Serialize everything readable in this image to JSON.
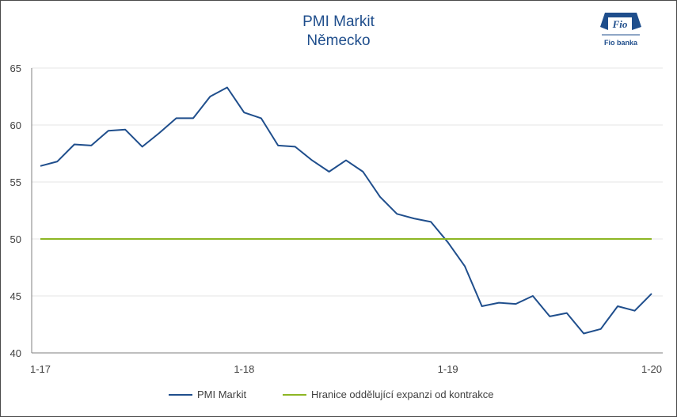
{
  "header": {
    "title_line1": "PMI Markit",
    "title_line2": "Německo",
    "logo_mark": "Fio",
    "logo_text": "Fio banka"
  },
  "colors": {
    "pmi_line": "#1f4e8c",
    "threshold_line": "#8db624",
    "grid": "#e6e6e6",
    "axis": "#7f7f7f",
    "title": "#1f4e8c",
    "logo": "#1f4e8c"
  },
  "chart_data": {
    "type": "line",
    "title": "PMI Markit",
    "subtitle": "Německo",
    "xlabel": "",
    "ylabel": "",
    "ylim": [
      40,
      65
    ],
    "yticks": [
      40,
      45,
      50,
      55,
      60,
      65
    ],
    "xticks": [
      "1-17",
      "1-18",
      "1-19",
      "1-20"
    ],
    "x": [
      "1-17",
      "2-17",
      "3-17",
      "4-17",
      "5-17",
      "6-17",
      "7-17",
      "8-17",
      "9-17",
      "10-17",
      "11-17",
      "12-17",
      "1-18",
      "2-18",
      "3-18",
      "4-18",
      "5-18",
      "6-18",
      "7-18",
      "8-18",
      "9-18",
      "10-18",
      "11-18",
      "12-18",
      "1-19",
      "2-19",
      "3-19",
      "4-19",
      "5-19",
      "6-19",
      "7-19",
      "8-19",
      "9-19",
      "10-19",
      "11-19",
      "12-19",
      "1-20"
    ],
    "series": [
      {
        "name": "PMI Markit",
        "values": [
          56.4,
          56.8,
          58.3,
          58.2,
          59.5,
          59.6,
          58.1,
          59.3,
          60.6,
          60.6,
          62.5,
          63.3,
          61.1,
          60.6,
          58.2,
          58.1,
          56.9,
          55.9,
          56.9,
          55.9,
          53.7,
          52.2,
          51.8,
          51.5,
          49.7,
          47.6,
          44.1,
          44.4,
          44.3,
          45.0,
          43.2,
          43.5,
          41.7,
          42.1,
          44.1,
          43.7,
          45.2
        ]
      },
      {
        "name": "Hranice oddělující expanzi od kontrakce",
        "values": [
          50,
          50,
          50,
          50,
          50,
          50,
          50,
          50,
          50,
          50,
          50,
          50,
          50,
          50,
          50,
          50,
          50,
          50,
          50,
          50,
          50,
          50,
          50,
          50,
          50,
          50,
          50,
          50,
          50,
          50,
          50,
          50,
          50,
          50,
          50,
          50,
          50
        ]
      }
    ],
    "grid": true,
    "legend_position": "bottom"
  }
}
